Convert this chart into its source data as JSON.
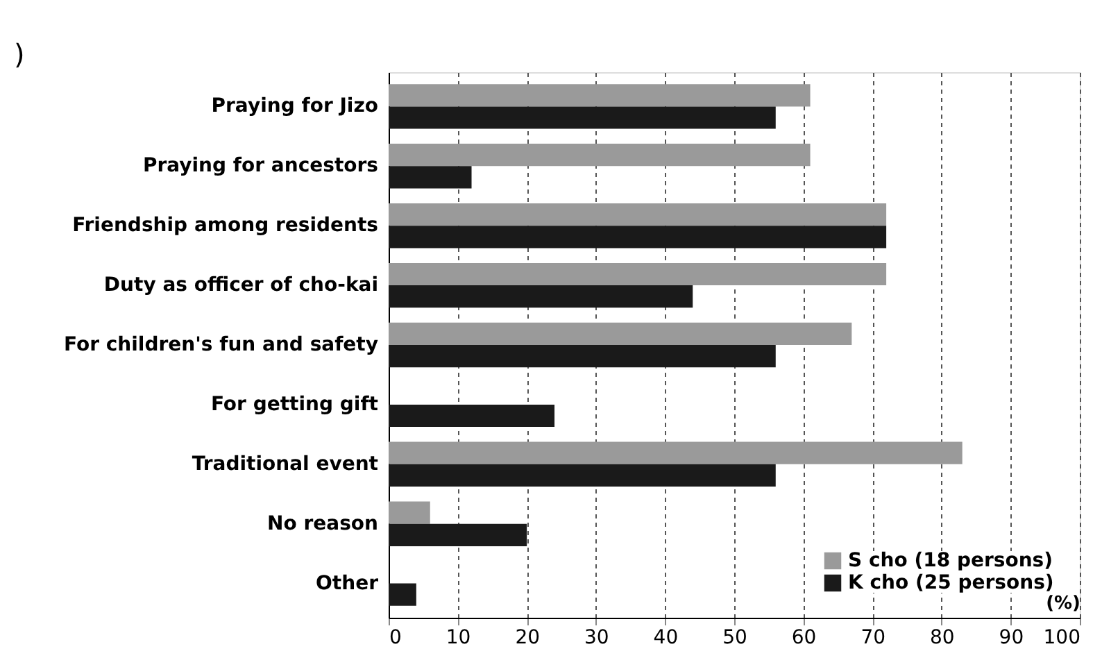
{
  "chart_data": {
    "type": "bar",
    "orientation": "horizontal",
    "categories": [
      "Praying for Jizo",
      "Praying for ancestors",
      "Friendship among residents",
      "Duty as officer of cho-kai",
      "For children's fun and safety",
      "For getting gift",
      "Traditional event",
      "No reason",
      "Other"
    ],
    "series": [
      {
        "name": "S cho (18 persons)",
        "color": "#9a9a9a",
        "values": [
          61,
          61,
          72,
          72,
          67,
          null,
          83,
          6,
          null
        ]
      },
      {
        "name": "K cho (25 persons)",
        "color": "#1a1a1a",
        "values": [
          56,
          12,
          72,
          44,
          56,
          24,
          56,
          20,
          4
        ]
      }
    ],
    "xlim": [
      0,
      100
    ],
    "xticks": [
      0,
      10,
      20,
      30,
      40,
      50,
      60,
      70,
      80,
      90,
      100
    ],
    "xlabel": "(%)",
    "grid": "x",
    "legend": "bottom right",
    "annotations": [
      ")"
    ]
  }
}
